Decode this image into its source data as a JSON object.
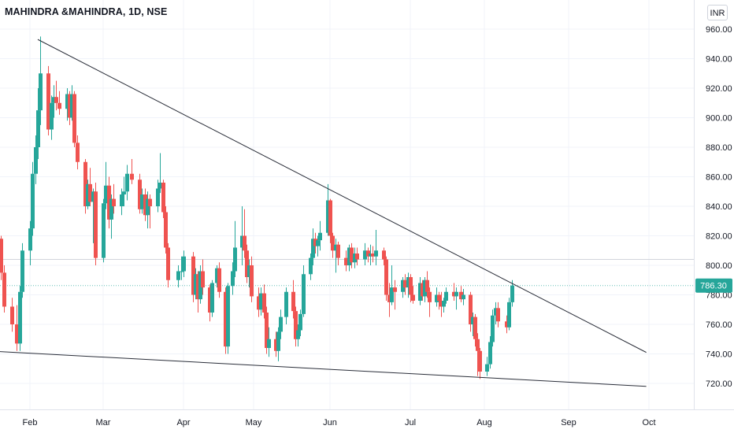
{
  "header": {
    "title": "MAHINDRA &MAHINDRA, 1D, NSE",
    "currency": "INR"
  },
  "price_tag": {
    "value": "786.30",
    "color": "#26a69a"
  },
  "colors": {
    "up": "#26a69a",
    "down": "#ef5350",
    "trendline": "#2a2e39",
    "grid": "#f0f3fa",
    "axis_text": "#131722"
  },
  "chart_data": {
    "type": "candlestick",
    "y_ticks": [
      "720.00",
      "740.00",
      "760.00",
      "780.00",
      "800.00",
      "820.00",
      "840.00",
      "860.00",
      "880.00",
      "900.00",
      "920.00",
      "940.00",
      "960.00"
    ],
    "ylim": [
      706,
      967
    ],
    "x_ticks": [
      "Feb",
      "Mar",
      "Apr",
      "May",
      "Jun",
      "Jul",
      "Aug",
      "Sep",
      "Oct"
    ],
    "x_tick_dates": [
      "2021-02-01",
      "2021-03-01",
      "2021-04-01",
      "2021-05-01",
      "2021-06-01",
      "2021-07-01",
      "2021-08-01",
      "2021-09-01",
      "2021-10-01"
    ],
    "last_price": 786.3,
    "candles": [
      [
        "2021-01-15",
        827,
        832,
        812,
        815
      ],
      [
        "2021-01-18",
        815,
        830,
        804,
        822
      ],
      [
        "2021-01-19",
        822,
        826,
        800,
        806
      ],
      [
        "2021-01-20",
        806,
        822,
        794,
        818
      ],
      [
        "2021-01-21",
        818,
        820,
        790,
        795
      ],
      [
        "2021-01-22",
        795,
        800,
        768,
        772
      ],
      [
        "2021-01-25",
        772,
        778,
        755,
        760
      ],
      [
        "2021-01-27",
        760,
        773,
        742,
        747
      ],
      [
        "2021-01-28",
        747,
        786,
        742,
        782
      ],
      [
        "2021-01-29",
        782,
        815,
        778,
        810
      ],
      [
        "2021-02-01",
        810,
        830,
        800,
        825
      ],
      [
        "2021-02-02",
        825,
        870,
        820,
        862
      ],
      [
        "2021-02-03",
        862,
        888,
        855,
        880
      ],
      [
        "2021-02-04",
        880,
        920,
        872,
        905
      ],
      [
        "2021-02-05",
        905,
        955,
        895,
        930
      ],
      [
        "2021-02-08",
        930,
        935,
        888,
        892
      ],
      [
        "2021-02-09",
        892,
        915,
        885,
        910
      ],
      [
        "2021-02-10",
        910,
        922,
        900,
        914
      ],
      [
        "2021-02-11",
        914,
        925,
        905,
        910
      ],
      [
        "2021-02-12",
        910,
        918,
        902,
        906
      ],
      [
        "2021-02-15",
        906,
        920,
        898,
        916
      ],
      [
        "2021-02-16",
        916,
        918,
        895,
        900
      ],
      [
        "2021-02-17",
        900,
        922,
        898,
        916
      ],
      [
        "2021-02-18",
        916,
        918,
        880,
        883
      ],
      [
        "2021-02-19",
        883,
        888,
        865,
        870
      ],
      [
        "2021-02-22",
        870,
        872,
        835,
        840
      ],
      [
        "2021-02-23",
        840,
        858,
        838,
        855
      ],
      [
        "2021-02-24",
        855,
        866,
        840,
        843
      ],
      [
        "2021-02-25",
        843,
        852,
        815,
        850
      ],
      [
        "2021-02-26",
        850,
        856,
        800,
        805
      ],
      [
        "2021-03-01",
        805,
        845,
        802,
        842
      ],
      [
        "2021-03-02",
        842,
        870,
        838,
        854
      ],
      [
        "2021-03-03",
        854,
        860,
        825,
        831
      ],
      [
        "2021-03-04",
        831,
        848,
        818,
        845
      ],
      [
        "2021-03-05",
        845,
        855,
        835,
        840
      ],
      [
        "2021-03-08",
        840,
        852,
        834,
        848
      ],
      [
        "2021-03-09",
        848,
        860,
        840,
        850
      ],
      [
        "2021-03-10",
        850,
        868,
        844,
        862
      ],
      [
        "2021-03-12",
        862,
        872,
        855,
        858
      ],
      [
        "2021-03-15",
        858,
        862,
        835,
        838
      ],
      [
        "2021-03-16",
        838,
        852,
        835,
        848
      ],
      [
        "2021-03-17",
        848,
        852,
        830,
        834
      ],
      [
        "2021-03-18",
        834,
        850,
        825,
        845
      ],
      [
        "2021-03-19",
        845,
        848,
        825,
        840
      ],
      [
        "2021-03-22",
        840,
        858,
        836,
        852
      ],
      [
        "2021-03-23",
        852,
        876,
        849,
        856
      ],
      [
        "2021-03-24",
        856,
        858,
        832,
        836
      ],
      [
        "2021-03-25",
        836,
        840,
        808,
        812
      ],
      [
        "2021-03-26",
        812,
        815,
        785,
        790
      ],
      [
        "2021-03-30",
        790,
        800,
        785,
        796
      ],
      [
        "2021-03-31",
        796,
        806,
        790,
        796
      ],
      [
        "2021-04-01",
        796,
        810,
        792,
        806
      ],
      [
        "2021-04-05",
        806,
        809,
        775,
        780
      ],
      [
        "2021-04-06",
        780,
        798,
        777,
        794
      ],
      [
        "2021-04-07",
        794,
        796,
        768,
        777
      ],
      [
        "2021-04-08",
        777,
        800,
        774,
        796
      ],
      [
        "2021-04-09",
        796,
        804,
        780,
        785
      ],
      [
        "2021-04-12",
        785,
        787,
        762,
        768
      ],
      [
        "2021-04-13",
        768,
        790,
        765,
        788
      ],
      [
        "2021-04-15",
        788,
        800,
        785,
        798
      ],
      [
        "2021-04-16",
        798,
        802,
        778,
        782
      ],
      [
        "2021-04-19",
        782,
        785,
        740,
        745
      ],
      [
        "2021-04-20",
        745,
        788,
        740,
        786
      ],
      [
        "2021-04-22",
        786,
        802,
        780,
        796
      ],
      [
        "2021-04-23",
        796,
        830,
        792,
        812
      ],
      [
        "2021-04-26",
        812,
        840,
        800,
        820
      ],
      [
        "2021-04-27",
        820,
        838,
        805,
        810
      ],
      [
        "2021-04-28",
        810,
        814,
        788,
        792
      ],
      [
        "2021-04-29",
        792,
        804,
        785,
        800
      ],
      [
        "2021-04-30",
        800,
        806,
        775,
        779
      ],
      [
        "2021-05-03",
        779,
        785,
        765,
        770
      ],
      [
        "2021-05-04",
        770,
        785,
        766,
        781
      ],
      [
        "2021-05-05",
        781,
        787,
        764,
        768
      ],
      [
        "2021-05-06",
        768,
        772,
        740,
        744
      ],
      [
        "2021-05-07",
        744,
        758,
        738,
        750
      ],
      [
        "2021-05-10",
        750,
        755,
        738,
        742
      ],
      [
        "2021-05-11",
        742,
        758,
        735,
        755
      ],
      [
        "2021-05-12",
        755,
        770,
        750,
        765
      ],
      [
        "2021-05-14",
        765,
        785,
        760,
        782
      ],
      [
        "2021-05-17",
        782,
        790,
        764,
        769
      ],
      [
        "2021-05-18",
        769,
        772,
        745,
        750
      ],
      [
        "2021-05-19",
        750,
        760,
        745,
        756
      ],
      [
        "2021-05-20",
        756,
        770,
        752,
        767
      ],
      [
        "2021-05-21",
        767,
        800,
        765,
        794
      ],
      [
        "2021-05-24",
        794,
        808,
        790,
        805
      ],
      [
        "2021-05-25",
        805,
        825,
        800,
        818
      ],
      [
        "2021-05-26",
        818,
        822,
        808,
        813
      ],
      [
        "2021-05-27",
        813,
        820,
        806,
        817
      ],
      [
        "2021-05-28",
        817,
        830,
        810,
        822
      ],
      [
        "2021-05-31",
        822,
        855,
        820,
        844
      ],
      [
        "2021-06-01",
        844,
        845,
        815,
        820
      ],
      [
        "2021-06-02",
        820,
        822,
        805,
        810
      ],
      [
        "2021-06-03",
        810,
        818,
        795,
        814
      ],
      [
        "2021-06-04",
        814,
        816,
        800,
        805
      ],
      [
        "2021-06-07",
        805,
        810,
        796,
        800
      ],
      [
        "2021-06-08",
        800,
        814,
        796,
        812
      ],
      [
        "2021-06-09",
        812,
        815,
        798,
        802
      ],
      [
        "2021-06-10",
        802,
        812,
        798,
        808
      ],
      [
        "2021-06-11",
        808,
        812,
        800,
        804
      ],
      [
        "2021-06-14",
        804,
        815,
        800,
        810
      ],
      [
        "2021-06-15",
        810,
        812,
        802,
        806
      ],
      [
        "2021-06-16",
        806,
        814,
        800,
        808
      ],
      [
        "2021-06-17",
        808,
        813,
        802,
        806
      ],
      [
        "2021-06-18",
        806,
        824,
        800,
        810
      ],
      [
        "2021-06-21",
        810,
        812,
        800,
        804
      ],
      [
        "2021-06-22",
        804,
        806,
        776,
        780
      ],
      [
        "2021-06-23",
        780,
        788,
        765,
        775
      ],
      [
        "2021-06-24",
        775,
        800,
        773,
        785
      ],
      [
        "2021-06-25",
        785,
        790,
        770,
        782
      ],
      [
        "2021-06-28",
        782,
        792,
        778,
        790
      ],
      [
        "2021-06-29",
        790,
        794,
        780,
        785
      ],
      [
        "2021-06-30",
        785,
        795,
        778,
        792
      ],
      [
        "2021-07-01",
        792,
        794,
        775,
        780
      ],
      [
        "2021-07-02",
        780,
        786,
        774,
        776
      ],
      [
        "2021-07-05",
        776,
        792,
        773,
        788
      ],
      [
        "2021-07-06",
        788,
        790,
        776,
        779
      ],
      [
        "2021-07-07",
        779,
        792,
        775,
        790
      ],
      [
        "2021-07-08",
        790,
        796,
        778,
        782
      ],
      [
        "2021-07-09",
        782,
        785,
        765,
        775
      ],
      [
        "2021-07-12",
        775,
        785,
        772,
        780
      ],
      [
        "2021-07-13",
        780,
        782,
        770,
        776
      ],
      [
        "2021-07-14",
        776,
        782,
        765,
        772
      ],
      [
        "2021-07-15",
        772,
        778,
        768,
        776
      ],
      [
        "2021-07-16",
        776,
        785,
        774,
        782
      ],
      [
        "2021-07-19",
        782,
        788,
        776,
        779
      ],
      [
        "2021-07-20",
        779,
        785,
        770,
        782
      ],
      [
        "2021-07-22",
        782,
        786,
        775,
        777
      ],
      [
        "2021-07-23",
        777,
        784,
        773,
        780
      ],
      [
        "2021-07-26",
        780,
        782,
        755,
        760
      ],
      [
        "2021-07-27",
        760,
        768,
        752,
        765
      ],
      [
        "2021-07-28",
        765,
        767,
        745,
        750
      ],
      [
        "2021-07-29",
        750,
        754,
        725,
        742
      ],
      [
        "2021-07-30",
        742,
        744,
        723,
        728
      ],
      [
        "2021-08-02",
        728,
        738,
        725,
        733
      ],
      [
        "2021-08-03",
        733,
        752,
        730,
        748
      ],
      [
        "2021-08-04",
        748,
        770,
        745,
        766
      ],
      [
        "2021-08-05",
        766,
        775,
        760,
        771
      ],
      [
        "2021-08-06",
        771,
        775,
        758,
        762
      ],
      [
        "2021-08-09",
        762,
        766,
        754,
        758
      ],
      [
        "2021-08-10",
        758,
        778,
        756,
        775
      ],
      [
        "2021-08-11",
        775,
        790,
        772,
        786.3
      ]
    ],
    "trendlines": [
      {
        "name": "upper",
        "from": [
          "2021-02-04",
          953
        ],
        "to": [
          "2021-09-30",
          741
        ]
      },
      {
        "name": "lower",
        "from": [
          "2021-01-16",
          742
        ],
        "to": [
          "2021-09-30",
          718
        ]
      }
    ],
    "horizontal_lines": [
      {
        "value": 804
      }
    ]
  }
}
